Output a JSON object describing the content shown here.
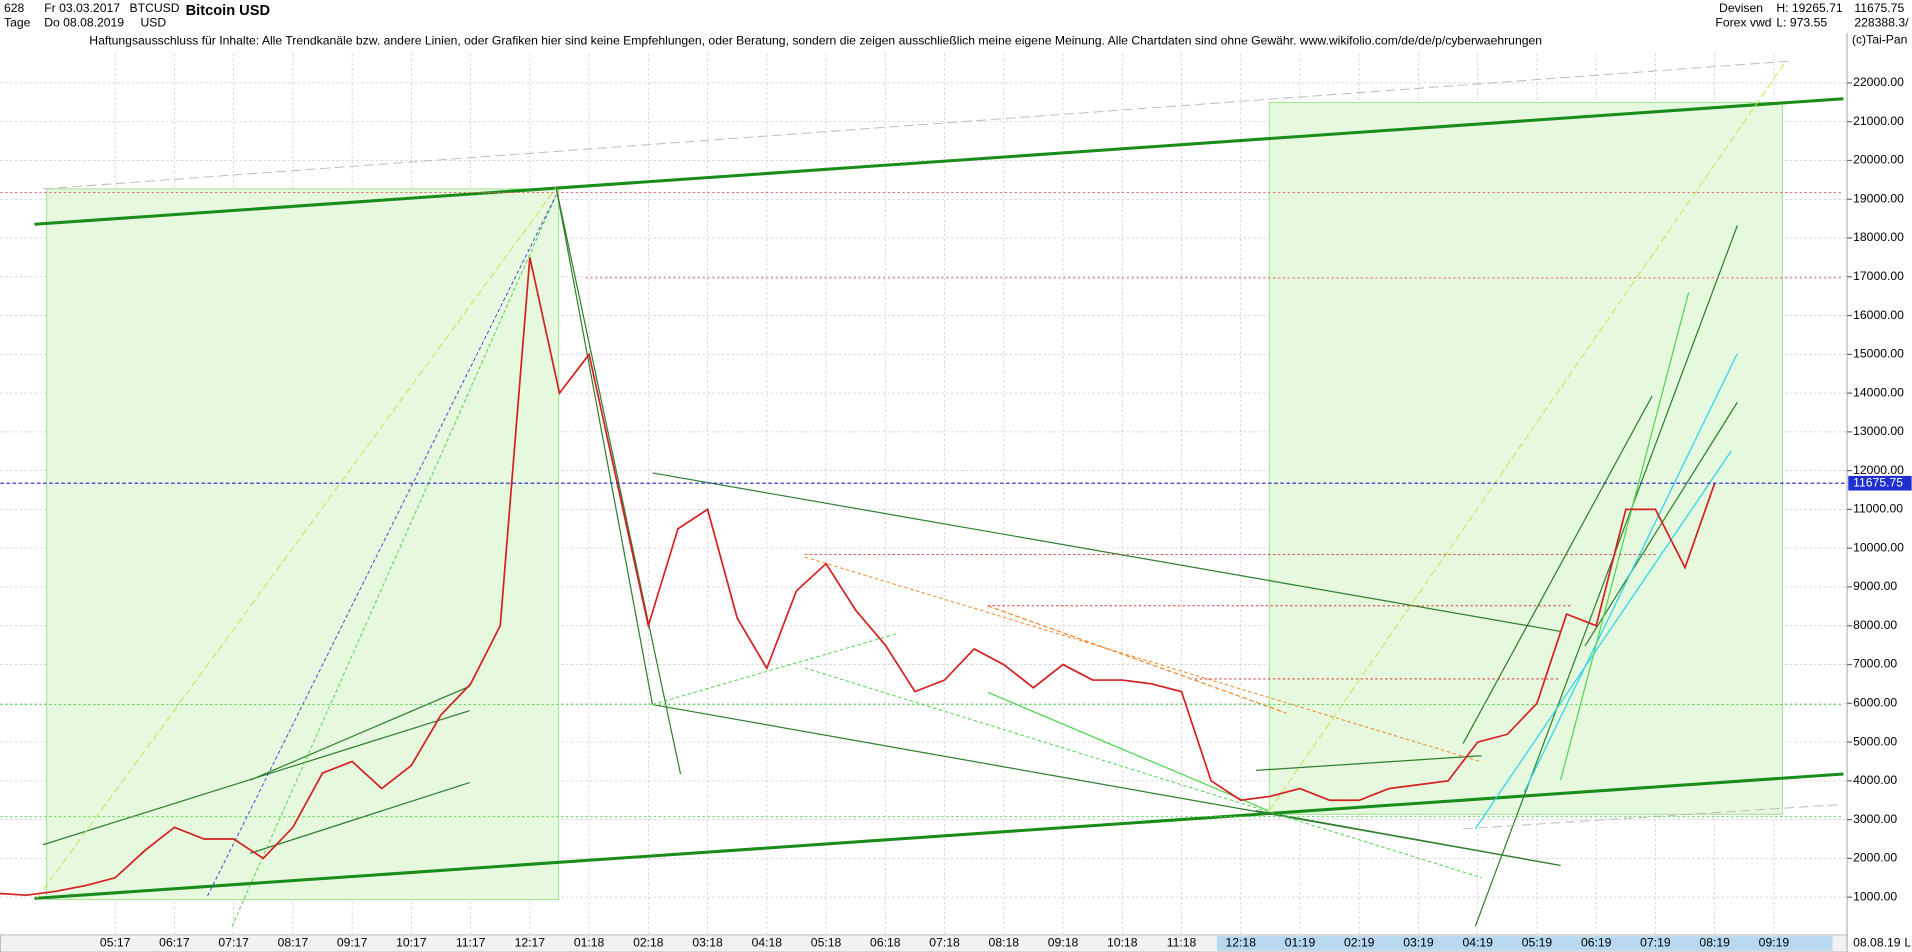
{
  "header": {
    "id": "628",
    "period": "Tage",
    "date_from": "Fr 03.03.2017",
    "date_to": "Do 08.08.2019",
    "symbol": "BTCUSD",
    "currency": "USD",
    "instrument": "Bitcoin USD",
    "market": "Devisen",
    "source": "Forex vwd",
    "high": "H: 19265.71",
    "low": "L: 973.55",
    "volume": "228388.3/",
    "copyright": "(c)Tai-Pan",
    "disclaimer": "Haftungsausschluss für Inhalte: Alle Trendkanäle bzw. andere Linien, oder Grafiken hier sind keine Empfehlungen, oder Beratung, sondern die zeigen ausschließlich meine eigene Meinung. Alle Chartdaten sind ohne Gewähr.  www.wikifolio.com/de/de/p/cyberwaehrungen",
    "end_date": "08.08.19",
    "scale_mode": "L"
  },
  "chart_data": {
    "type": "line",
    "title": "Bitcoin USD",
    "categories": [
      null,
      null,
      null,
      null,
      "05:17",
      null,
      "06:17",
      null,
      "07:17",
      null,
      "08:17",
      null,
      "09:17",
      null,
      "10:17",
      null,
      "11:17",
      null,
      "12:17",
      null,
      "01:18",
      null,
      "02:18",
      null,
      "03:18",
      null,
      "04:18",
      null,
      "05:18",
      null,
      "06:18",
      null,
      "07:18",
      null,
      "08:18",
      null,
      "09:18",
      null,
      "10:18",
      null,
      "11:18",
      null,
      "12:18",
      null,
      "01:19",
      null,
      "02:19",
      null,
      "03:19",
      null,
      "04:19",
      null,
      "05:19",
      null,
      "06:19",
      null,
      "07:19",
      null,
      "08:19",
      null,
      "09:19",
      null
    ],
    "series": [
      {
        "name": "BTCUSD",
        "color": "#d42020",
        "values": [
          1100,
          1050,
          1150,
          1300,
          1500,
          2200,
          2800,
          2500,
          2500,
          2000,
          2800,
          4200,
          4500,
          3800,
          4400,
          5700,
          6500,
          8000,
          17500,
          14000,
          15000,
          11500,
          8000,
          10500,
          11000,
          8200,
          6900,
          8900,
          9600,
          8400,
          7500,
          6300,
          6600,
          7400,
          7000,
          6400,
          7000,
          6600,
          6600,
          6500,
          6300,
          4000,
          3500,
          3600,
          3800,
          3500,
          3500,
          3800,
          3900,
          4000,
          5000,
          5200,
          6000,
          8300,
          8000,
          11000,
          11000,
          9500,
          11675.75,
          null,
          null,
          null
        ]
      }
    ],
    "last_price": 11675.75,
    "ylim": [
      57,
      22755
    ],
    "yticks": [
      {
        "value": 1000,
        "label": "1000.00"
      },
      {
        "value": 2000,
        "label": "2000.00"
      },
      {
        "value": 3000,
        "label": "3000.00"
      },
      {
        "value": 4000,
        "label": "4000.00"
      },
      {
        "value": 5000,
        "label": "5000.00"
      },
      {
        "value": 6000,
        "label": "6000.00"
      },
      {
        "value": 7000,
        "label": "7000.00"
      },
      {
        "value": 8000,
        "label": "8000.00"
      },
      {
        "value": 9000,
        "label": "9000.00"
      },
      {
        "value": 10000,
        "label": "10000.00"
      },
      {
        "value": 11000,
        "label": "11000.00"
      },
      {
        "value": 12000,
        "label": "12000.00"
      },
      {
        "value": 13000,
        "label": "13000.00"
      },
      {
        "value": 14000,
        "label": "14000.00"
      },
      {
        "value": 15000,
        "label": "15000.00"
      },
      {
        "value": 16000,
        "label": "16000.00"
      },
      {
        "value": 17000,
        "label": "17000.00"
      },
      {
        "value": 18000,
        "label": "18000.00"
      },
      {
        "value": 19000,
        "label": "19000.00"
      },
      {
        "value": 20000,
        "label": "20000.00"
      },
      {
        "value": 21000,
        "label": "21000.00"
      },
      {
        "value": 22000,
        "label": "22000.00"
      }
    ],
    "grid": true
  }
}
